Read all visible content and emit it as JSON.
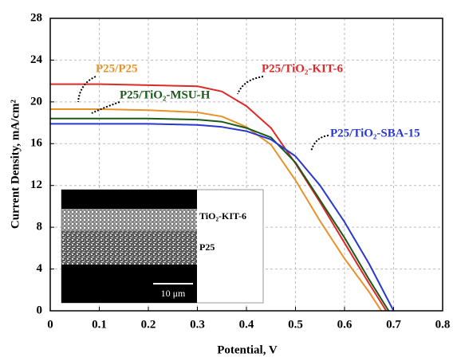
{
  "chart_data": {
    "type": "line",
    "xlabel": "Potential, V",
    "ylabel": "Current Density, mA/cm²",
    "xlim": [
      0,
      0.8
    ],
    "xticks": [
      0,
      0.1,
      0.2,
      0.3,
      0.4,
      0.5,
      0.6,
      0.7,
      0.8
    ],
    "ylim": [
      0,
      28
    ],
    "yticks": [
      0,
      4,
      8,
      12,
      16,
      20,
      24,
      28
    ],
    "grid": true,
    "series": [
      {
        "name": "P25/TiO₂-KIT-6",
        "color": "#e02828",
        "x": [
          0,
          0.1,
          0.2,
          0.3,
          0.35,
          0.4,
          0.45,
          0.5,
          0.55,
          0.6,
          0.65,
          0.685
        ],
        "values": [
          21.7,
          21.7,
          21.6,
          21.5,
          21.0,
          19.6,
          17.5,
          14.1,
          10.4,
          6.5,
          2.6,
          0
        ]
      },
      {
        "name": "P25/P25",
        "color": "#e8922a",
        "x": [
          0,
          0.1,
          0.2,
          0.3,
          0.35,
          0.4,
          0.45,
          0.5,
          0.55,
          0.6,
          0.65,
          0.675
        ],
        "values": [
          19.3,
          19.3,
          19.2,
          19.0,
          18.6,
          17.6,
          15.9,
          12.5,
          8.6,
          5.0,
          1.8,
          0
        ]
      },
      {
        "name": "P25/TiO₂-MSU-H",
        "color": "#1a5a1a",
        "x": [
          0,
          0.1,
          0.2,
          0.3,
          0.35,
          0.4,
          0.45,
          0.5,
          0.55,
          0.6,
          0.65,
          0.69
        ],
        "values": [
          18.4,
          18.4,
          18.4,
          18.3,
          18.1,
          17.5,
          16.6,
          14.2,
          10.6,
          7.0,
          3.0,
          0
        ]
      },
      {
        "name": "P25/TiO₂-SBA-15",
        "color": "#2838d0",
        "x": [
          0,
          0.1,
          0.2,
          0.3,
          0.35,
          0.4,
          0.45,
          0.5,
          0.55,
          0.6,
          0.65,
          0.7
        ],
        "values": [
          17.9,
          17.9,
          17.9,
          17.8,
          17.6,
          17.2,
          16.4,
          14.8,
          12.0,
          8.5,
          4.5,
          0
        ]
      }
    ],
    "inset_labels": [
      "TiO₂-KIT-6",
      "P25",
      "10 μm"
    ]
  }
}
